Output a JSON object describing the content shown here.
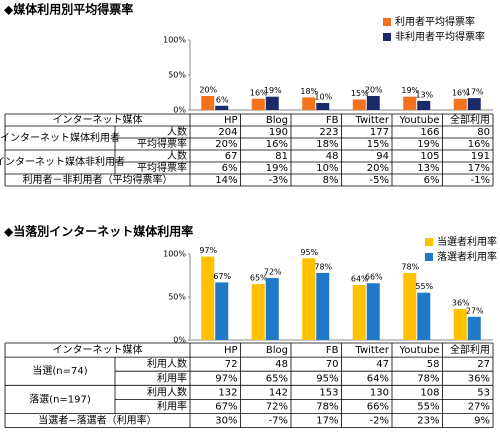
{
  "chart_data": [
    {
      "type": "bar",
      "title": "◆媒体利用別平均得票率",
      "categories": [
        "HP",
        "Blog",
        "FB",
        "Twitter",
        "Youtube",
        "全部利用"
      ],
      "series": [
        {
          "name": "利用者平均得票率",
          "color": "#f5721d",
          "values": [
            20,
            16,
            18,
            15,
            19,
            16
          ],
          "value_labels": [
            "20%",
            "16%",
            "18%",
            "15%",
            "19%",
            "16%"
          ]
        },
        {
          "name": "非利用者平均得票率",
          "color": "#1b2a6b",
          "values": [
            6,
            19,
            10,
            20,
            13,
            17
          ],
          "value_labels": [
            "6%",
            "19%",
            "10%",
            "20%",
            "13%",
            "17%"
          ]
        }
      ],
      "ylim": [
        0,
        100
      ],
      "yticks": [
        {
          "value": 0,
          "label": "0%"
        },
        {
          "value": 50,
          "label": "50%"
        },
        {
          "value": 100,
          "label": "100%"
        }
      ],
      "legend": "top-right",
      "table": {
        "header": "インターネット媒体",
        "groups": [
          {
            "label": "インターネット媒体利用者",
            "rows": [
              {
                "label": "人数",
                "values": [
                  "204",
                  "190",
                  "223",
                  "177",
                  "166",
                  "80"
                ]
              },
              {
                "label": "平均得票率",
                "values": [
                  "20%",
                  "16%",
                  "18%",
                  "15%",
                  "19%",
                  "16%"
                ]
              }
            ]
          },
          {
            "label": "インターネット媒体非利用者",
            "rows": [
              {
                "label": "人数",
                "values": [
                  "67",
                  "81",
                  "48",
                  "94",
                  "105",
                  "191"
                ]
              },
              {
                "label": "平均得票率",
                "values": [
                  "6%",
                  "19%",
                  "10%",
                  "20%",
                  "13%",
                  "17%"
                ]
              }
            ]
          }
        ],
        "footer": {
          "label": "利用者－非利用者（平均得票率）",
          "values": [
            "14%",
            "-3%",
            "8%",
            "-5%",
            "6%",
            "-1%"
          ]
        }
      }
    },
    {
      "type": "bar",
      "title": "◆当落別インターネット媒体利用率",
      "categories": [
        "HP",
        "Blog",
        "FB",
        "Twitter",
        "Youtube",
        "全部利用"
      ],
      "series": [
        {
          "name": "当選者利用率",
          "color": "#ffc000",
          "values": [
            97,
            65,
            95,
            64,
            78,
            36
          ],
          "value_labels": [
            "97%",
            "65%",
            "95%",
            "64%",
            "78%",
            "36%"
          ]
        },
        {
          "name": "落選者利用率",
          "color": "#1f78c8",
          "values": [
            67,
            72,
            78,
            66,
            55,
            27
          ],
          "value_labels": [
            "67%",
            "72%",
            "78%",
            "66%",
            "55%",
            "27%"
          ]
        }
      ],
      "ylim": [
        0,
        100
      ],
      "yticks": [
        {
          "value": 0,
          "label": "0%"
        },
        {
          "value": 50,
          "label": "50%"
        },
        {
          "value": 100,
          "label": "100%"
        }
      ],
      "legend": "top-right",
      "table": {
        "header": "インターネット媒体",
        "groups": [
          {
            "label": "当選(n=74)",
            "rows": [
              {
                "label": "利用人数",
                "values": [
                  "72",
                  "48",
                  "70",
                  "47",
                  "58",
                  "27"
                ]
              },
              {
                "label": "利用率",
                "values": [
                  "97%",
                  "65%",
                  "95%",
                  "64%",
                  "78%",
                  "36%"
                ]
              }
            ]
          },
          {
            "label": "落選(n=197)",
            "rows": [
              {
                "label": "利用人数",
                "values": [
                  "132",
                  "142",
                  "153",
                  "130",
                  "108",
                  "53"
                ]
              },
              {
                "label": "利用率",
                "values": [
                  "67%",
                  "72%",
                  "78%",
                  "66%",
                  "55%",
                  "27%"
                ]
              }
            ]
          }
        ],
        "footer": {
          "label": "当選者−落選者（利用率）",
          "values": [
            "30%",
            "-7%",
            "17%",
            "-2%",
            "23%",
            "9%"
          ]
        }
      }
    }
  ]
}
